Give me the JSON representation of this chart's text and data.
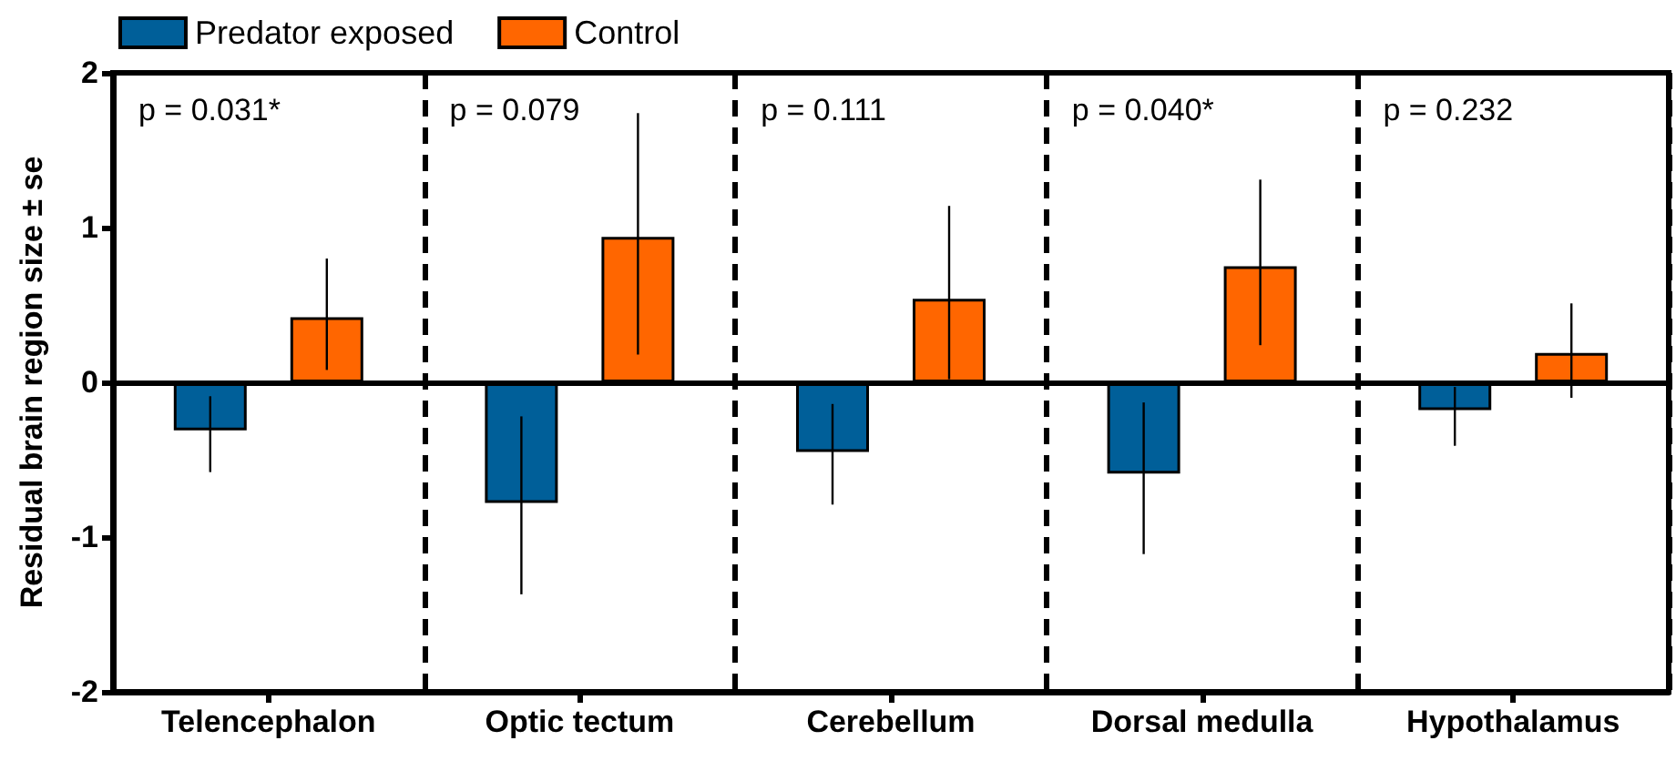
{
  "chart_data": {
    "type": "bar",
    "ylabel": "Residual brain region size ± se",
    "categories": [
      "Telencephalon",
      "Optic tectum",
      "Cerebellum",
      "Dorsal medulla",
      "Hypothalamus"
    ],
    "series": [
      {
        "name": "Predator exposed",
        "color": "#005f99",
        "values": [
          -0.31,
          -0.78,
          -0.45,
          -0.59,
          -0.18
        ],
        "errors": [
          [
            -0.58,
            -0.09
          ],
          [
            -1.37,
            -0.22
          ],
          [
            -0.79,
            -0.14
          ],
          [
            -1.11,
            -0.13
          ],
          [
            -0.41,
            -0.03
          ]
        ]
      },
      {
        "name": "Control",
        "color": "#ff6600",
        "values": [
          0.42,
          0.94,
          0.54,
          0.75,
          0.19
        ],
        "errors": [
          [
            0.08,
            0.8
          ],
          [
            0.18,
            1.74
          ],
          [
            0.02,
            1.14
          ],
          [
            0.24,
            1.31
          ],
          [
            -0.1,
            0.51
          ]
        ]
      }
    ],
    "ylim": [
      -2,
      2
    ],
    "yticks": [
      -2,
      -1,
      0,
      1,
      2
    ],
    "ref_lines": [
      {
        "axis": "y",
        "value": 0,
        "color": "#000000"
      }
    ],
    "annotations": [
      "p = 0.031*",
      "p = 0.079",
      "p = 0.111",
      "p = 0.040*",
      "p = 0.232"
    ],
    "grid": "x",
    "legend": "top left"
  }
}
